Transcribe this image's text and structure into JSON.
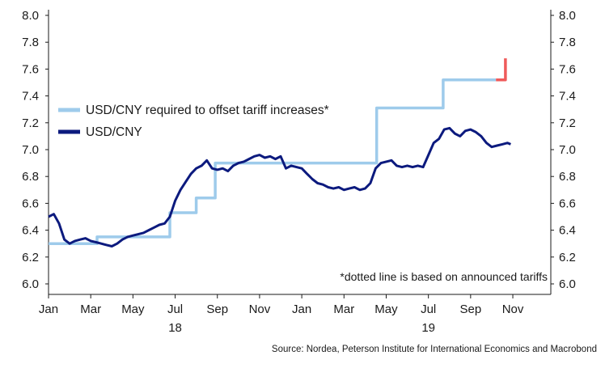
{
  "chart_data": {
    "type": "line",
    "title": "",
    "xlabel": "",
    "ylabel": "",
    "ylim": [
      6.0,
      8.0
    ],
    "xlim": [
      0,
      23.8
    ],
    "y_ticks": [
      "8.0",
      "7.8",
      "7.6",
      "7.4",
      "7.2",
      "7.0",
      "6.8",
      "6.6",
      "6.4",
      "6.2",
      "6.0"
    ],
    "y_tick_values": [
      8.0,
      7.8,
      7.6,
      7.4,
      7.2,
      7.0,
      6.8,
      6.6,
      6.4,
      6.2,
      6.0
    ],
    "x_ticks": [
      {
        "label": "Jan",
        "pos": 0
      },
      {
        "label": "Mar",
        "pos": 2
      },
      {
        "label": "May",
        "pos": 4
      },
      {
        "label": "Jul",
        "pos": 6
      },
      {
        "label": "Sep",
        "pos": 8
      },
      {
        "label": "Nov",
        "pos": 10
      },
      {
        "label": "Jan",
        "pos": 12
      },
      {
        "label": "Mar",
        "pos": 14
      },
      {
        "label": "May",
        "pos": 16
      },
      {
        "label": "Jul",
        "pos": 18
      },
      {
        "label": "Sep",
        "pos": 20
      },
      {
        "label": "Nov",
        "pos": 22
      }
    ],
    "year_labels": [
      {
        "label": "18",
        "pos": 6
      },
      {
        "label": "19",
        "pos": 18
      }
    ],
    "grid": false,
    "legend_position": "middle-left",
    "series": [
      {
        "name": "USD/CNY required to offset tariff increases*",
        "color": "#9ecbeb",
        "style": "step",
        "points": [
          [
            0,
            6.3
          ],
          [
            2.3,
            6.3
          ],
          [
            2.3,
            6.35
          ],
          [
            5.75,
            6.35
          ],
          [
            5.75,
            6.53
          ],
          [
            7.0,
            6.53
          ],
          [
            7.0,
            6.64
          ],
          [
            7.9,
            6.64
          ],
          [
            7.9,
            6.9
          ],
          [
            15.55,
            6.9
          ],
          [
            15.55,
            7.31
          ],
          [
            18.7,
            7.31
          ],
          [
            18.7,
            7.52
          ],
          [
            21.2,
            7.52
          ]
        ]
      },
      {
        "name": "",
        "color": "#ef5a5a",
        "style": "step",
        "points": [
          [
            21.2,
            7.52
          ],
          [
            21.65,
            7.52
          ],
          [
            21.65,
            7.68
          ]
        ]
      },
      {
        "name": "USD/CNY",
        "color": "#0c1a7e",
        "style": "line",
        "points": [
          [
            0,
            6.5
          ],
          [
            0.25,
            6.52
          ],
          [
            0.5,
            6.45
          ],
          [
            0.75,
            6.33
          ],
          [
            1.0,
            6.3
          ],
          [
            1.25,
            6.32
          ],
          [
            1.5,
            6.33
          ],
          [
            1.75,
            6.34
          ],
          [
            2.0,
            6.32
          ],
          [
            2.25,
            6.31
          ],
          [
            2.5,
            6.3
          ],
          [
            2.75,
            6.29
          ],
          [
            3.0,
            6.28
          ],
          [
            3.25,
            6.3
          ],
          [
            3.5,
            6.33
          ],
          [
            3.75,
            6.35
          ],
          [
            4.0,
            6.36
          ],
          [
            4.25,
            6.37
          ],
          [
            4.5,
            6.38
          ],
          [
            4.75,
            6.4
          ],
          [
            5.0,
            6.42
          ],
          [
            5.25,
            6.44
          ],
          [
            5.5,
            6.45
          ],
          [
            5.75,
            6.5
          ],
          [
            6.0,
            6.62
          ],
          [
            6.25,
            6.7
          ],
          [
            6.5,
            6.76
          ],
          [
            6.75,
            6.82
          ],
          [
            7.0,
            6.86
          ],
          [
            7.25,
            6.88
          ],
          [
            7.5,
            6.92
          ],
          [
            7.75,
            6.86
          ],
          [
            8.0,
            6.85
          ],
          [
            8.25,
            6.86
          ],
          [
            8.5,
            6.84
          ],
          [
            8.75,
            6.88
          ],
          [
            9.0,
            6.9
          ],
          [
            9.25,
            6.91
          ],
          [
            9.5,
            6.93
          ],
          [
            9.75,
            6.95
          ],
          [
            10.0,
            6.96
          ],
          [
            10.25,
            6.94
          ],
          [
            10.5,
            6.95
          ],
          [
            10.75,
            6.93
          ],
          [
            11.0,
            6.95
          ],
          [
            11.25,
            6.86
          ],
          [
            11.5,
            6.88
          ],
          [
            11.75,
            6.87
          ],
          [
            12.0,
            6.86
          ],
          [
            12.25,
            6.82
          ],
          [
            12.5,
            6.78
          ],
          [
            12.75,
            6.75
          ],
          [
            13.0,
            6.74
          ],
          [
            13.25,
            6.72
          ],
          [
            13.5,
            6.71
          ],
          [
            13.75,
            6.72
          ],
          [
            14.0,
            6.7
          ],
          [
            14.25,
            6.71
          ],
          [
            14.5,
            6.72
          ],
          [
            14.75,
            6.7
          ],
          [
            15.0,
            6.71
          ],
          [
            15.25,
            6.75
          ],
          [
            15.5,
            6.86
          ],
          [
            15.75,
            6.9
          ],
          [
            16.0,
            6.91
          ],
          [
            16.25,
            6.92
          ],
          [
            16.5,
            6.88
          ],
          [
            16.75,
            6.87
          ],
          [
            17.0,
            6.88
          ],
          [
            17.25,
            6.87
          ],
          [
            17.5,
            6.88
          ],
          [
            17.75,
            6.87
          ],
          [
            18.0,
            6.96
          ],
          [
            18.25,
            7.05
          ],
          [
            18.5,
            7.08
          ],
          [
            18.75,
            7.15
          ],
          [
            19.0,
            7.16
          ],
          [
            19.25,
            7.12
          ],
          [
            19.5,
            7.1
          ],
          [
            19.75,
            7.14
          ],
          [
            20.0,
            7.15
          ],
          [
            20.25,
            7.13
          ],
          [
            20.5,
            7.1
          ],
          [
            20.75,
            7.05
          ],
          [
            21.0,
            7.02
          ],
          [
            21.25,
            7.03
          ],
          [
            21.5,
            7.04
          ],
          [
            21.75,
            7.05
          ],
          [
            21.9,
            7.04
          ]
        ]
      }
    ],
    "legend": [
      {
        "label": "USD/CNY required to offset tariff increases*",
        "color": "#9ecbeb"
      },
      {
        "label": "USD/CNY",
        "color": "#0c1a7e"
      }
    ],
    "annotation": "*dotted line is based on announced tariffs",
    "source": "Source: Nordea, Peterson Institute for International Economics and Macrobond"
  }
}
